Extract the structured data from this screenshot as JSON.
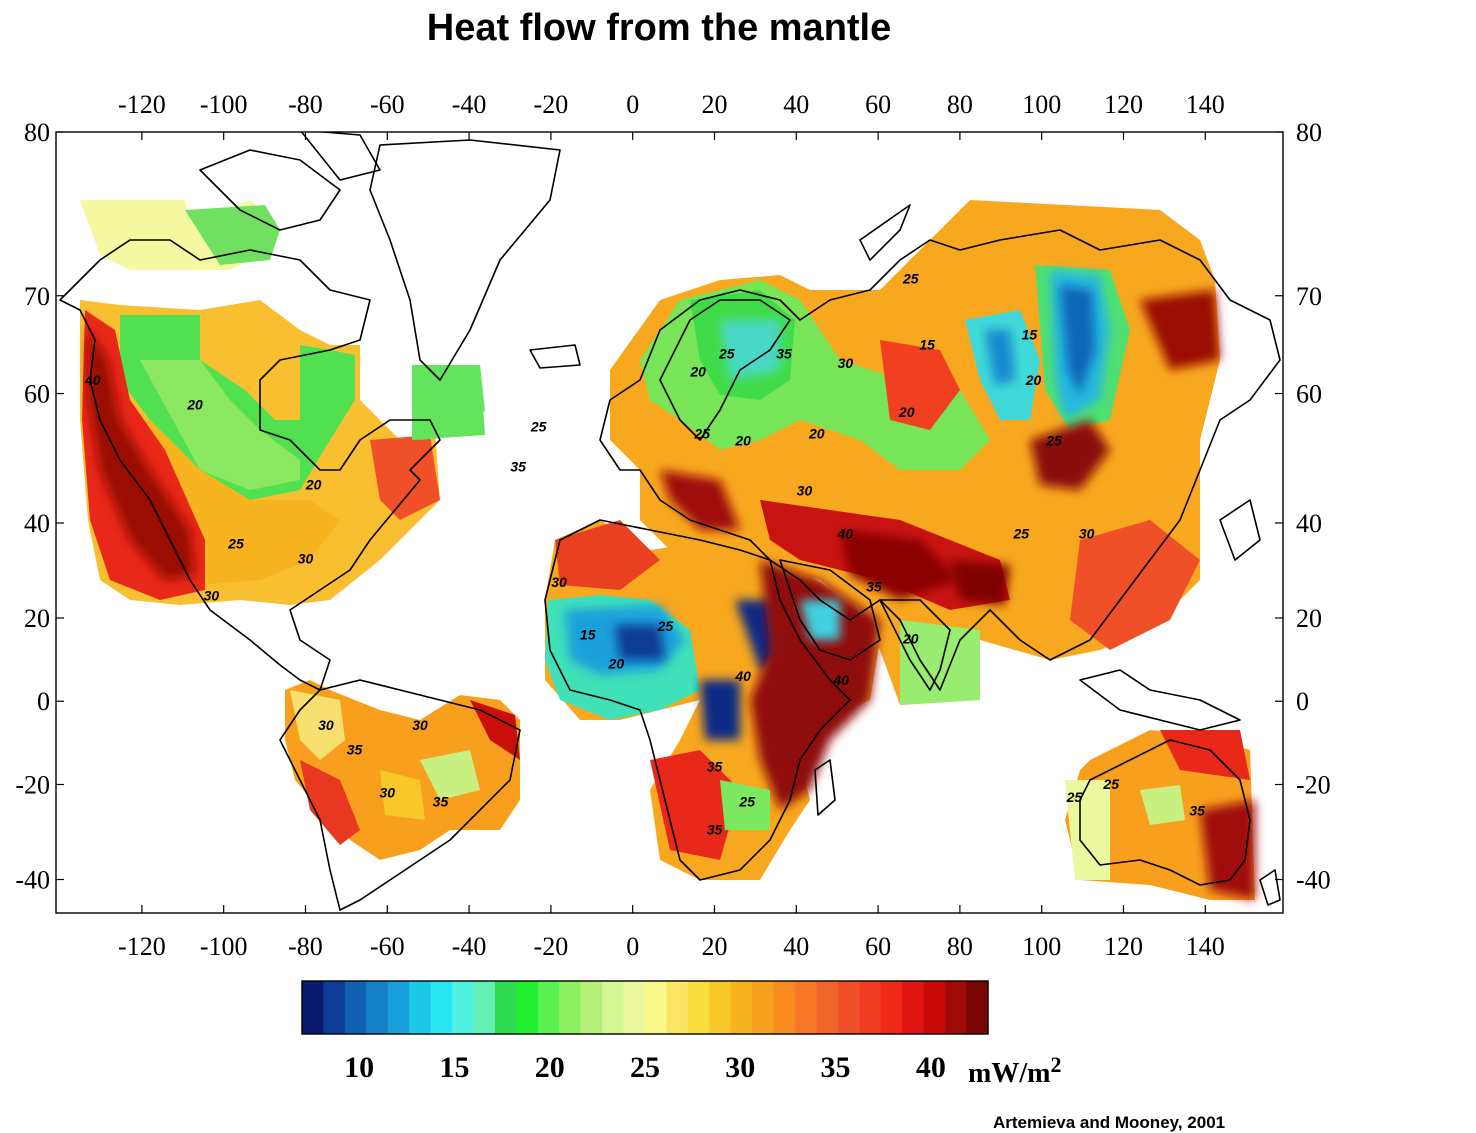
{
  "title": "Heat flow from the mantle",
  "credit": "Artemieva and Mooney, 2001",
  "axes": {
    "x_ticks": [
      "-120",
      "-100",
      "-80",
      "-60",
      "-40",
      "-20",
      "0",
      "20",
      "40",
      "60",
      "80",
      "100",
      "120",
      "140"
    ],
    "x_values": [
      -120,
      -100,
      -80,
      -60,
      -40,
      -20,
      0,
      20,
      40,
      60,
      80,
      100,
      120,
      140
    ],
    "y_left_ticks": [
      "80",
      "70",
      "60",
      "40",
      "20",
      "0",
      "-20",
      "-40"
    ],
    "y_right_ticks": [
      "80",
      "70",
      "60",
      "40",
      "20",
      "0",
      "-20",
      "-40"
    ],
    "y_values": [
      80,
      70,
      60,
      40,
      20,
      0,
      -20,
      -40
    ],
    "x_range": [
      -141,
      159
    ],
    "y_range": [
      -46,
      80
    ]
  },
  "colorbar": {
    "labels": [
      "10",
      "15",
      "20",
      "25",
      "30",
      "35",
      "40"
    ],
    "values": [
      10,
      15,
      20,
      25,
      30,
      35,
      40
    ],
    "range": [
      7,
      43
    ],
    "unit": "mW/m",
    "unit_sup": "2",
    "colors": [
      "#0a1a6e",
      "#0d3c96",
      "#1060b4",
      "#1580c8",
      "#18a0dc",
      "#1ec8e8",
      "#28e6f0",
      "#50f0e0",
      "#64f0b4",
      "#2edc50",
      "#20f030",
      "#5af050",
      "#8cf060",
      "#b4f078",
      "#d2f896",
      "#ecf8a0",
      "#fafa8c",
      "#fae664",
      "#fadc3c",
      "#f8c828",
      "#f8b41e",
      "#f8a01e",
      "#f88c1e",
      "#f87828",
      "#f06428",
      "#f05028",
      "#f03c20",
      "#f02818",
      "#e01410",
      "#c80a08",
      "#a00a08",
      "#780404"
    ]
  },
  "contour_labels": [
    {
      "text": "40",
      "lon": -132,
      "lat": 61
    },
    {
      "text": "20",
      "lon": -107,
      "lat": 58
    },
    {
      "text": "20",
      "lon": -78,
      "lat": 46
    },
    {
      "text": "25",
      "lon": -97,
      "lat": 35
    },
    {
      "text": "30",
      "lon": -80,
      "lat": 32
    },
    {
      "text": "30",
      "lon": -103,
      "lat": 24
    },
    {
      "text": "25",
      "lon": 68,
      "lat": 71
    },
    {
      "text": "15",
      "lon": 72,
      "lat": 65
    },
    {
      "text": "15",
      "lon": 97,
      "lat": 66
    },
    {
      "text": "35",
      "lon": 37,
      "lat": 64
    },
    {
      "text": "30",
      "lon": 52,
      "lat": 63
    },
    {
      "text": "25",
      "lon": 23,
      "lat": 64
    },
    {
      "text": "20",
      "lon": 16,
      "lat": 62
    },
    {
      "text": "20",
      "lon": 67,
      "lat": 57
    },
    {
      "text": "20",
      "lon": 98,
      "lat": 61
    },
    {
      "text": "25",
      "lon": 103,
      "lat": 53
    },
    {
      "text": "25",
      "lon": -23,
      "lat": 55
    },
    {
      "text": "25",
      "lon": 17,
      "lat": 54
    },
    {
      "text": "20",
      "lon": 27,
      "lat": 53
    },
    {
      "text": "20",
      "lon": 45,
      "lat": 54
    },
    {
      "text": "35",
      "lon": -28,
      "lat": 49
    },
    {
      "text": "30",
      "lon": 42,
      "lat": 45
    },
    {
      "text": "40",
      "lon": 52,
      "lat": 37
    },
    {
      "text": "25",
      "lon": 95,
      "lat": 37
    },
    {
      "text": "30",
      "lon": 111,
      "lat": 37
    },
    {
      "text": "35",
      "lon": 59,
      "lat": 26
    },
    {
      "text": "20",
      "lon": 68,
      "lat": 14
    },
    {
      "text": "30",
      "lon": -18,
      "lat": 27
    },
    {
      "text": "15",
      "lon": -11,
      "lat": 15
    },
    {
      "text": "25",
      "lon": 8,
      "lat": 17
    },
    {
      "text": "20",
      "lon": -4,
      "lat": 8
    },
    {
      "text": "40",
      "lon": 27,
      "lat": 5
    },
    {
      "text": "40",
      "lon": 51,
      "lat": 4
    },
    {
      "text": "30",
      "lon": -75,
      "lat": -7
    },
    {
      "text": "35",
      "lon": -68,
      "lat": -13
    },
    {
      "text": "30",
      "lon": -52,
      "lat": -7
    },
    {
      "text": "30",
      "lon": -60,
      "lat": -23
    },
    {
      "text": "35",
      "lon": -47,
      "lat": -25
    },
    {
      "text": "35",
      "lon": 20,
      "lat": -17
    },
    {
      "text": "25",
      "lon": 28,
      "lat": -25
    },
    {
      "text": "35",
      "lon": 20,
      "lat": -31
    },
    {
      "text": "25",
      "lon": 117,
      "lat": -21
    },
    {
      "text": "25",
      "lon": 108,
      "lat": -24
    },
    {
      "text": "35",
      "lon": 138,
      "lat": -27
    }
  ]
}
